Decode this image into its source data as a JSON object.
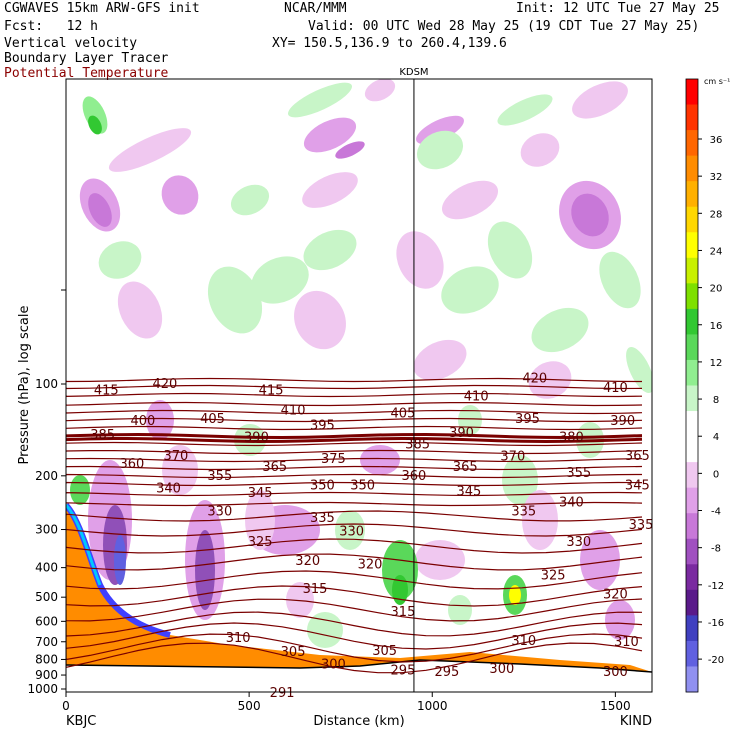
{
  "header": {
    "line1_left": "CGWAVES 15km ARW-GFS init",
    "line1_center": "NCAR/MMM",
    "line1_right": "Init: 12 UTC Tue 27 May 25",
    "line2_left": "Fcst:   12 h",
    "line2_right": "Valid: 00 UTC Wed 28 May 25 (19 CDT Tue 27 May 25)",
    "line3_left": "Vertical velocity",
    "line3_right": "XY= 150.5,136.9 to 260.4,139.6",
    "line4_left": "Boundary Layer Tracer",
    "line5_left": "Potential Temperature"
  },
  "colors": {
    "theta_line": "#7a0000",
    "terrain": "#ff8c00",
    "title_red": "#8b0000"
  },
  "chart_data": {
    "type": "heatmap",
    "title": "Vertical velocity",
    "xlabel": "Distance (km)",
    "ylabel": "Pressure (hPa), log scale",
    "x_ticks": [
      0,
      500,
      1000,
      1500
    ],
    "xlim": [
      0,
      1600
    ],
    "y_ticks": [
      100,
      200,
      300,
      400,
      500,
      600,
      700,
      800,
      900,
      1000
    ],
    "y_scale": "log",
    "left_station": "KBJC",
    "right_station": "KIND",
    "marker_station": "KDSM",
    "marker_x_km": 950,
    "colorbar": {
      "unit": "cm s⁻¹",
      "ticks": [
        36,
        32,
        28,
        24,
        20,
        16,
        12,
        8,
        4,
        0,
        -4,
        -8,
        -12,
        -16,
        -20
      ],
      "colors": [
        "#ff0000",
        "#ff3300",
        "#ff6600",
        "#ff8c00",
        "#ffb000",
        "#ffd700",
        "#ffff00",
        "#c8f000",
        "#7ee000",
        "#32c832",
        "#5ad85a",
        "#90ee90",
        "#c8f5c8",
        "#ffffff",
        "#ffffff",
        "#f0c8f0",
        "#e0a0e8",
        "#c878d8",
        "#a050c0",
        "#7a2aa0",
        "#5a1a8a",
        "#4040c0",
        "#6060e0",
        "#9090f0"
      ]
    },
    "theta_labels": [
      {
        "v": "415",
        "x": 110,
        "p": 105
      },
      {
        "v": "420",
        "x": 270,
        "p": 100
      },
      {
        "v": "415",
        "x": 560,
        "p": 105
      },
      {
        "v": "410",
        "x": 1120,
        "p": 110
      },
      {
        "v": "420",
        "x": 1280,
        "p": 96
      },
      {
        "v": "410",
        "x": 1500,
        "p": 103
      },
      {
        "v": "410",
        "x": 620,
        "p": 122
      },
      {
        "v": "405",
        "x": 400,
        "p": 130
      },
      {
        "v": "405",
        "x": 920,
        "p": 125
      },
      {
        "v": "395",
        "x": 1260,
        "p": 130
      },
      {
        "v": "390",
        "x": 1520,
        "p": 132
      },
      {
        "v": "385",
        "x": 100,
        "p": 147
      },
      {
        "v": "400",
        "x": 210,
        "p": 132
      },
      {
        "v": "395",
        "x": 700,
        "p": 137
      },
      {
        "v": "390",
        "x": 520,
        "p": 150
      },
      {
        "v": "390",
        "x": 1080,
        "p": 145
      },
      {
        "v": "385",
        "x": 960,
        "p": 158
      },
      {
        "v": "380",
        "x": 1380,
        "p": 150
      },
      {
        "v": "370",
        "x": 300,
        "p": 172
      },
      {
        "v": "375",
        "x": 730,
        "p": 176
      },
      {
        "v": "370",
        "x": 1220,
        "p": 173
      },
      {
        "v": "365",
        "x": 1560,
        "p": 172
      },
      {
        "v": "360",
        "x": 180,
        "p": 183
      },
      {
        "v": "365",
        "x": 570,
        "p": 187
      },
      {
        "v": "365",
        "x": 1090,
        "p": 187
      },
      {
        "v": "360",
        "x": 950,
        "p": 200
      },
      {
        "v": "355",
        "x": 420,
        "p": 200
      },
      {
        "v": "355",
        "x": 1400,
        "p": 196
      },
      {
        "v": "345",
        "x": 1560,
        "p": 215
      },
      {
        "v": "340",
        "x": 280,
        "p": 220
      },
      {
        "v": "345",
        "x": 530,
        "p": 228
      },
      {
        "v": "350",
        "x": 700,
        "p": 215
      },
      {
        "v": "350",
        "x": 810,
        "p": 215
      },
      {
        "v": "345",
        "x": 1100,
        "p": 225
      },
      {
        "v": "340",
        "x": 1380,
        "p": 245
      },
      {
        "v": "330",
        "x": 420,
        "p": 262
      },
      {
        "v": "335",
        "x": 700,
        "p": 275
      },
      {
        "v": "335",
        "x": 1250,
        "p": 262
      },
      {
        "v": "335",
        "x": 1570,
        "p": 290
      },
      {
        "v": "330",
        "x": 780,
        "p": 305
      },
      {
        "v": "330",
        "x": 1400,
        "p": 330
      },
      {
        "v": "325",
        "x": 530,
        "p": 330
      },
      {
        "v": "320",
        "x": 660,
        "p": 380
      },
      {
        "v": "320",
        "x": 830,
        "p": 390
      },
      {
        "v": "325",
        "x": 1330,
        "p": 425
      },
      {
        "v": "320",
        "x": 1500,
        "p": 490
      },
      {
        "v": "315",
        "x": 680,
        "p": 470
      },
      {
        "v": "315",
        "x": 920,
        "p": 560
      },
      {
        "v": "310",
        "x": 470,
        "p": 680
      },
      {
        "v": "310",
        "x": 1250,
        "p": 695
      },
      {
        "v": "310",
        "x": 1530,
        "p": 700
      },
      {
        "v": "305",
        "x": 620,
        "p": 755
      },
      {
        "v": "305",
        "x": 870,
        "p": 750
      },
      {
        "v": "300",
        "x": 730,
        "p": 830
      },
      {
        "v": "300",
        "x": 1190,
        "p": 860
      },
      {
        "v": "300",
        "x": 1500,
        "p": 880
      },
      {
        "v": "295",
        "x": 1040,
        "p": 880
      },
      {
        "v": "295",
        "x": 920,
        "p": 870
      },
      {
        "v": "291",
        "x": 590,
        "p": 1030
      }
    ]
  }
}
